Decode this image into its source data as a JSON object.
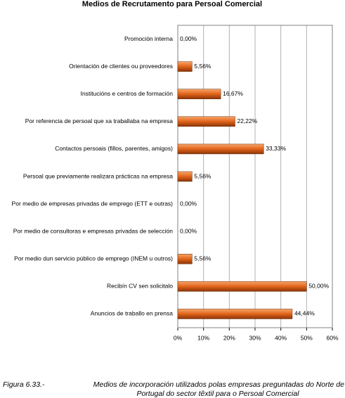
{
  "chart_data": {
    "type": "barh",
    "title": "Medios de Recrutamento para Persoal Comercial",
    "categories": [
      "Promoción interna",
      "Orientación de clientes ou proveedores",
      "Institucións e centros de formación",
      "Por referencia de persoal que xa traballaba na empresa",
      "Contactos persoais (fillos, parentes, amigos)",
      "Persoal que previamente realizara prácticas na empresa",
      "Por medio de empresas privadas de emprego (ETT e outras)",
      "Por medio  de consultoras e empresas privadas de selección",
      "Por medio dun servicio público de emprego (INEM u outros)",
      "Recibín CV sen solicitalo",
      "Anuncios de traballo en prensa"
    ],
    "values": [
      0,
      5.56,
      16.67,
      22.22,
      33.33,
      5.56,
      0,
      0,
      5.56,
      50,
      44.44
    ],
    "value_labels": [
      "0,00%",
      "5,56%",
      "16,67%",
      "22,22%",
      "33,33%",
      "5,56%",
      "0,00%",
      "0,00%",
      "5,56%",
      "50,00%",
      "44,44%"
    ],
    "color": "#e0641a",
    "xlim": [
      0,
      60
    ],
    "xticks": [
      {
        "value": 0,
        "label": "0%"
      },
      {
        "value": 10,
        "label": "10%"
      },
      {
        "value": 20,
        "label": "20%"
      },
      {
        "value": 30,
        "label": "30%"
      },
      {
        "value": 40,
        "label": "40%"
      },
      {
        "value": 50,
        "label": "50%"
      },
      {
        "value": 60,
        "label": "60%"
      }
    ],
    "grid": true,
    "caption_label": "Figura 6.33.-",
    "caption": [
      "Medios de incorporación utilizados polas empresas preguntadas do Norte de",
      "Portugal do sector têxtil para o Persoal Comercial"
    ]
  }
}
